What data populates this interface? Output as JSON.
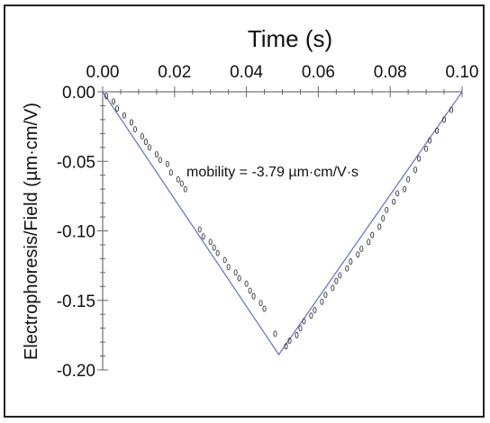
{
  "chart_data": {
    "type": "scatter",
    "title": "",
    "xlabel": "Time (s)",
    "ylabel": "Electrophoresis/Field (µm·cm/V)",
    "xlim": [
      0.0,
      0.1
    ],
    "ylim": [
      -0.2,
      0.0
    ],
    "x_ticks": [
      "0.00",
      "0.02",
      "0.04",
      "0.06",
      "0.08",
      "0.10"
    ],
    "y_ticks": [
      "0.00",
      "-0.05",
      "-0.10",
      "-0.15",
      "-0.20"
    ],
    "x_axis_position": "top",
    "grid": false,
    "annotation": "mobility = -3.79 µm·cm/V·s",
    "fit_line": {
      "x": [
        0.0,
        0.049,
        0.1
      ],
      "y": [
        0.0,
        -0.189,
        0.0
      ],
      "color": "#5b6fd6"
    },
    "marker_color": "#333333",
    "series": [
      {
        "x": [
          0.001,
          0.003,
          0.004,
          0.006,
          0.008,
          0.009,
          0.011,
          0.012,
          0.013,
          0.015,
          0.016,
          0.018,
          0.019,
          0.021,
          0.022,
          0.023,
          0.027,
          0.028,
          0.03,
          0.031,
          0.032,
          0.034,
          0.035,
          0.037,
          0.038,
          0.04,
          0.041,
          0.042,
          0.044,
          0.045,
          0.048,
          0.051,
          0.052,
          0.054,
          0.055,
          0.056,
          0.058,
          0.059,
          0.061,
          0.062,
          0.064,
          0.065,
          0.066,
          0.068,
          0.069,
          0.071,
          0.072,
          0.074,
          0.075,
          0.077,
          0.078,
          0.079,
          0.081,
          0.082,
          0.084,
          0.085,
          0.087,
          0.088,
          0.09,
          0.091,
          0.093,
          0.095,
          0.097
        ],
        "y": [
          -0.003,
          -0.007,
          -0.012,
          -0.017,
          -0.022,
          -0.027,
          -0.032,
          -0.036,
          -0.04,
          -0.045,
          -0.049,
          -0.052,
          -0.058,
          -0.063,
          -0.066,
          -0.07,
          -0.099,
          -0.104,
          -0.108,
          -0.112,
          -0.116,
          -0.121,
          -0.126,
          -0.13,
          -0.134,
          -0.138,
          -0.143,
          -0.147,
          -0.152,
          -0.156,
          -0.174,
          -0.183,
          -0.179,
          -0.175,
          -0.17,
          -0.165,
          -0.161,
          -0.157,
          -0.151,
          -0.146,
          -0.141,
          -0.136,
          -0.132,
          -0.127,
          -0.122,
          -0.117,
          -0.113,
          -0.108,
          -0.103,
          -0.097,
          -0.091,
          -0.085,
          -0.079,
          -0.073,
          -0.07,
          -0.063,
          -0.056,
          -0.048,
          -0.041,
          -0.035,
          -0.028,
          -0.02,
          -0.013
        ]
      }
    ]
  }
}
